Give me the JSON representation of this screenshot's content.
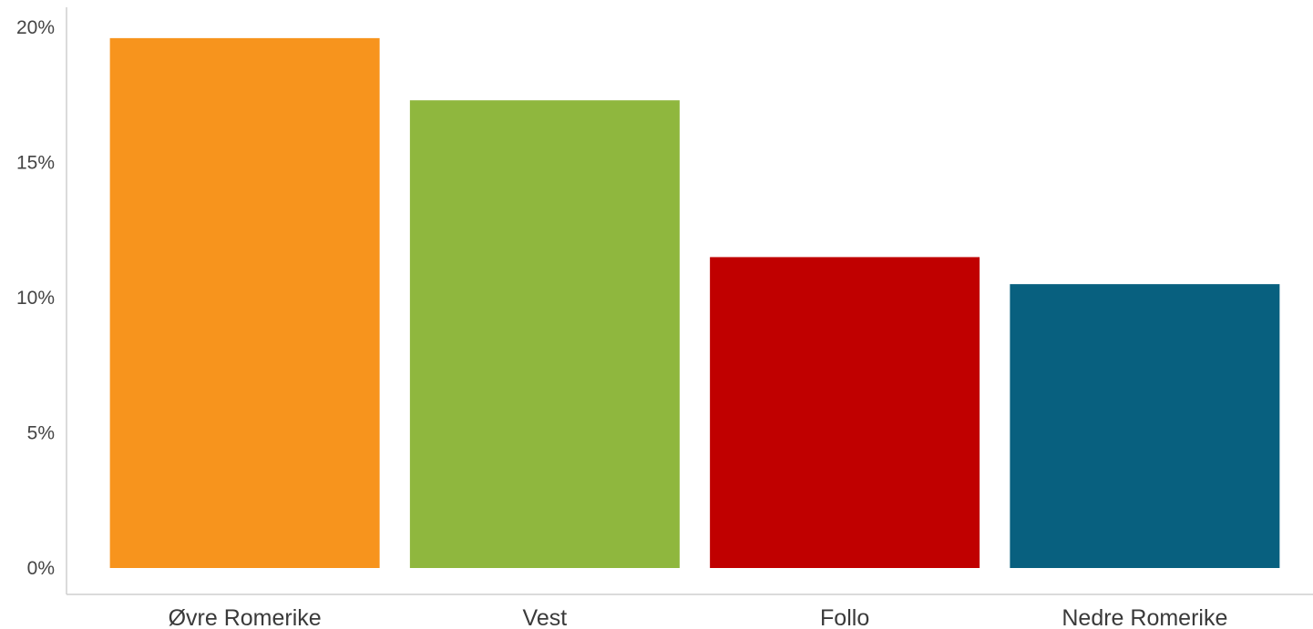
{
  "chart_data": {
    "type": "bar",
    "title": "",
    "xlabel": "",
    "ylabel": "",
    "categories": [
      "Øvre Romerike",
      "Vest",
      "Follo",
      "Nedre Romerike"
    ],
    "values": [
      19.6,
      17.3,
      11.5,
      10.5
    ],
    "colors": [
      "#F7941D",
      "#8FB73E",
      "#C00000",
      "#08607F"
    ],
    "ylim": [
      0,
      20
    ],
    "yticks": [
      0,
      5,
      10,
      15,
      20
    ],
    "ytick_labels": [
      "0%",
      "5%",
      "10%",
      "15%",
      "20%"
    ],
    "grid": false,
    "legend": "none"
  }
}
